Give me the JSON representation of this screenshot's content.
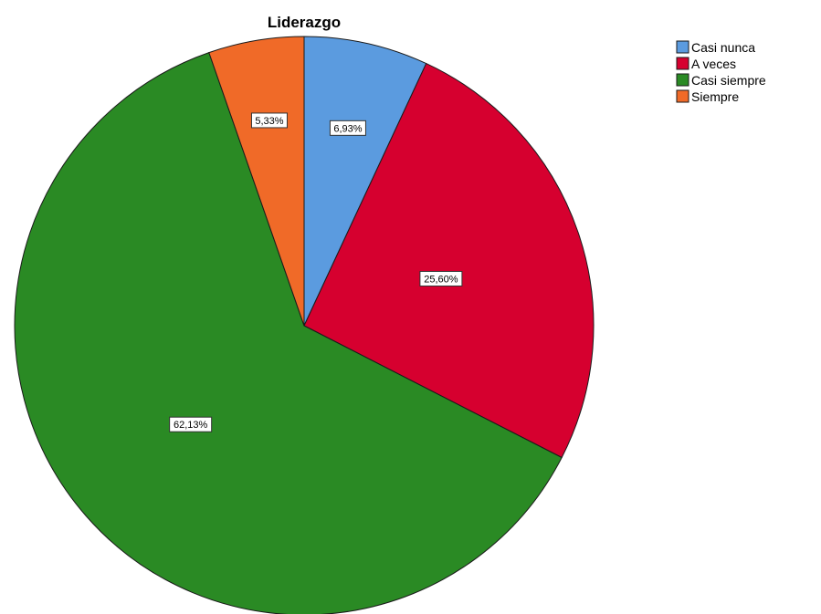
{
  "chart_data": {
    "type": "pie",
    "title": "Liderazgo",
    "categories": [
      "Casi nunca",
      "A veces",
      "Casi siempre",
      "Siempre"
    ],
    "values": [
      6.93,
      25.6,
      62.13,
      5.33
    ],
    "labels": [
      "6,93%",
      "25,60%",
      "62,13%",
      "5,33%"
    ],
    "colors": [
      "#5b9bdf",
      "#d6002f",
      "#2a8a24",
      "#f06a28"
    ],
    "start_angle": "12 o'clock",
    "direction": "clockwise",
    "legend_position": "top-right"
  }
}
